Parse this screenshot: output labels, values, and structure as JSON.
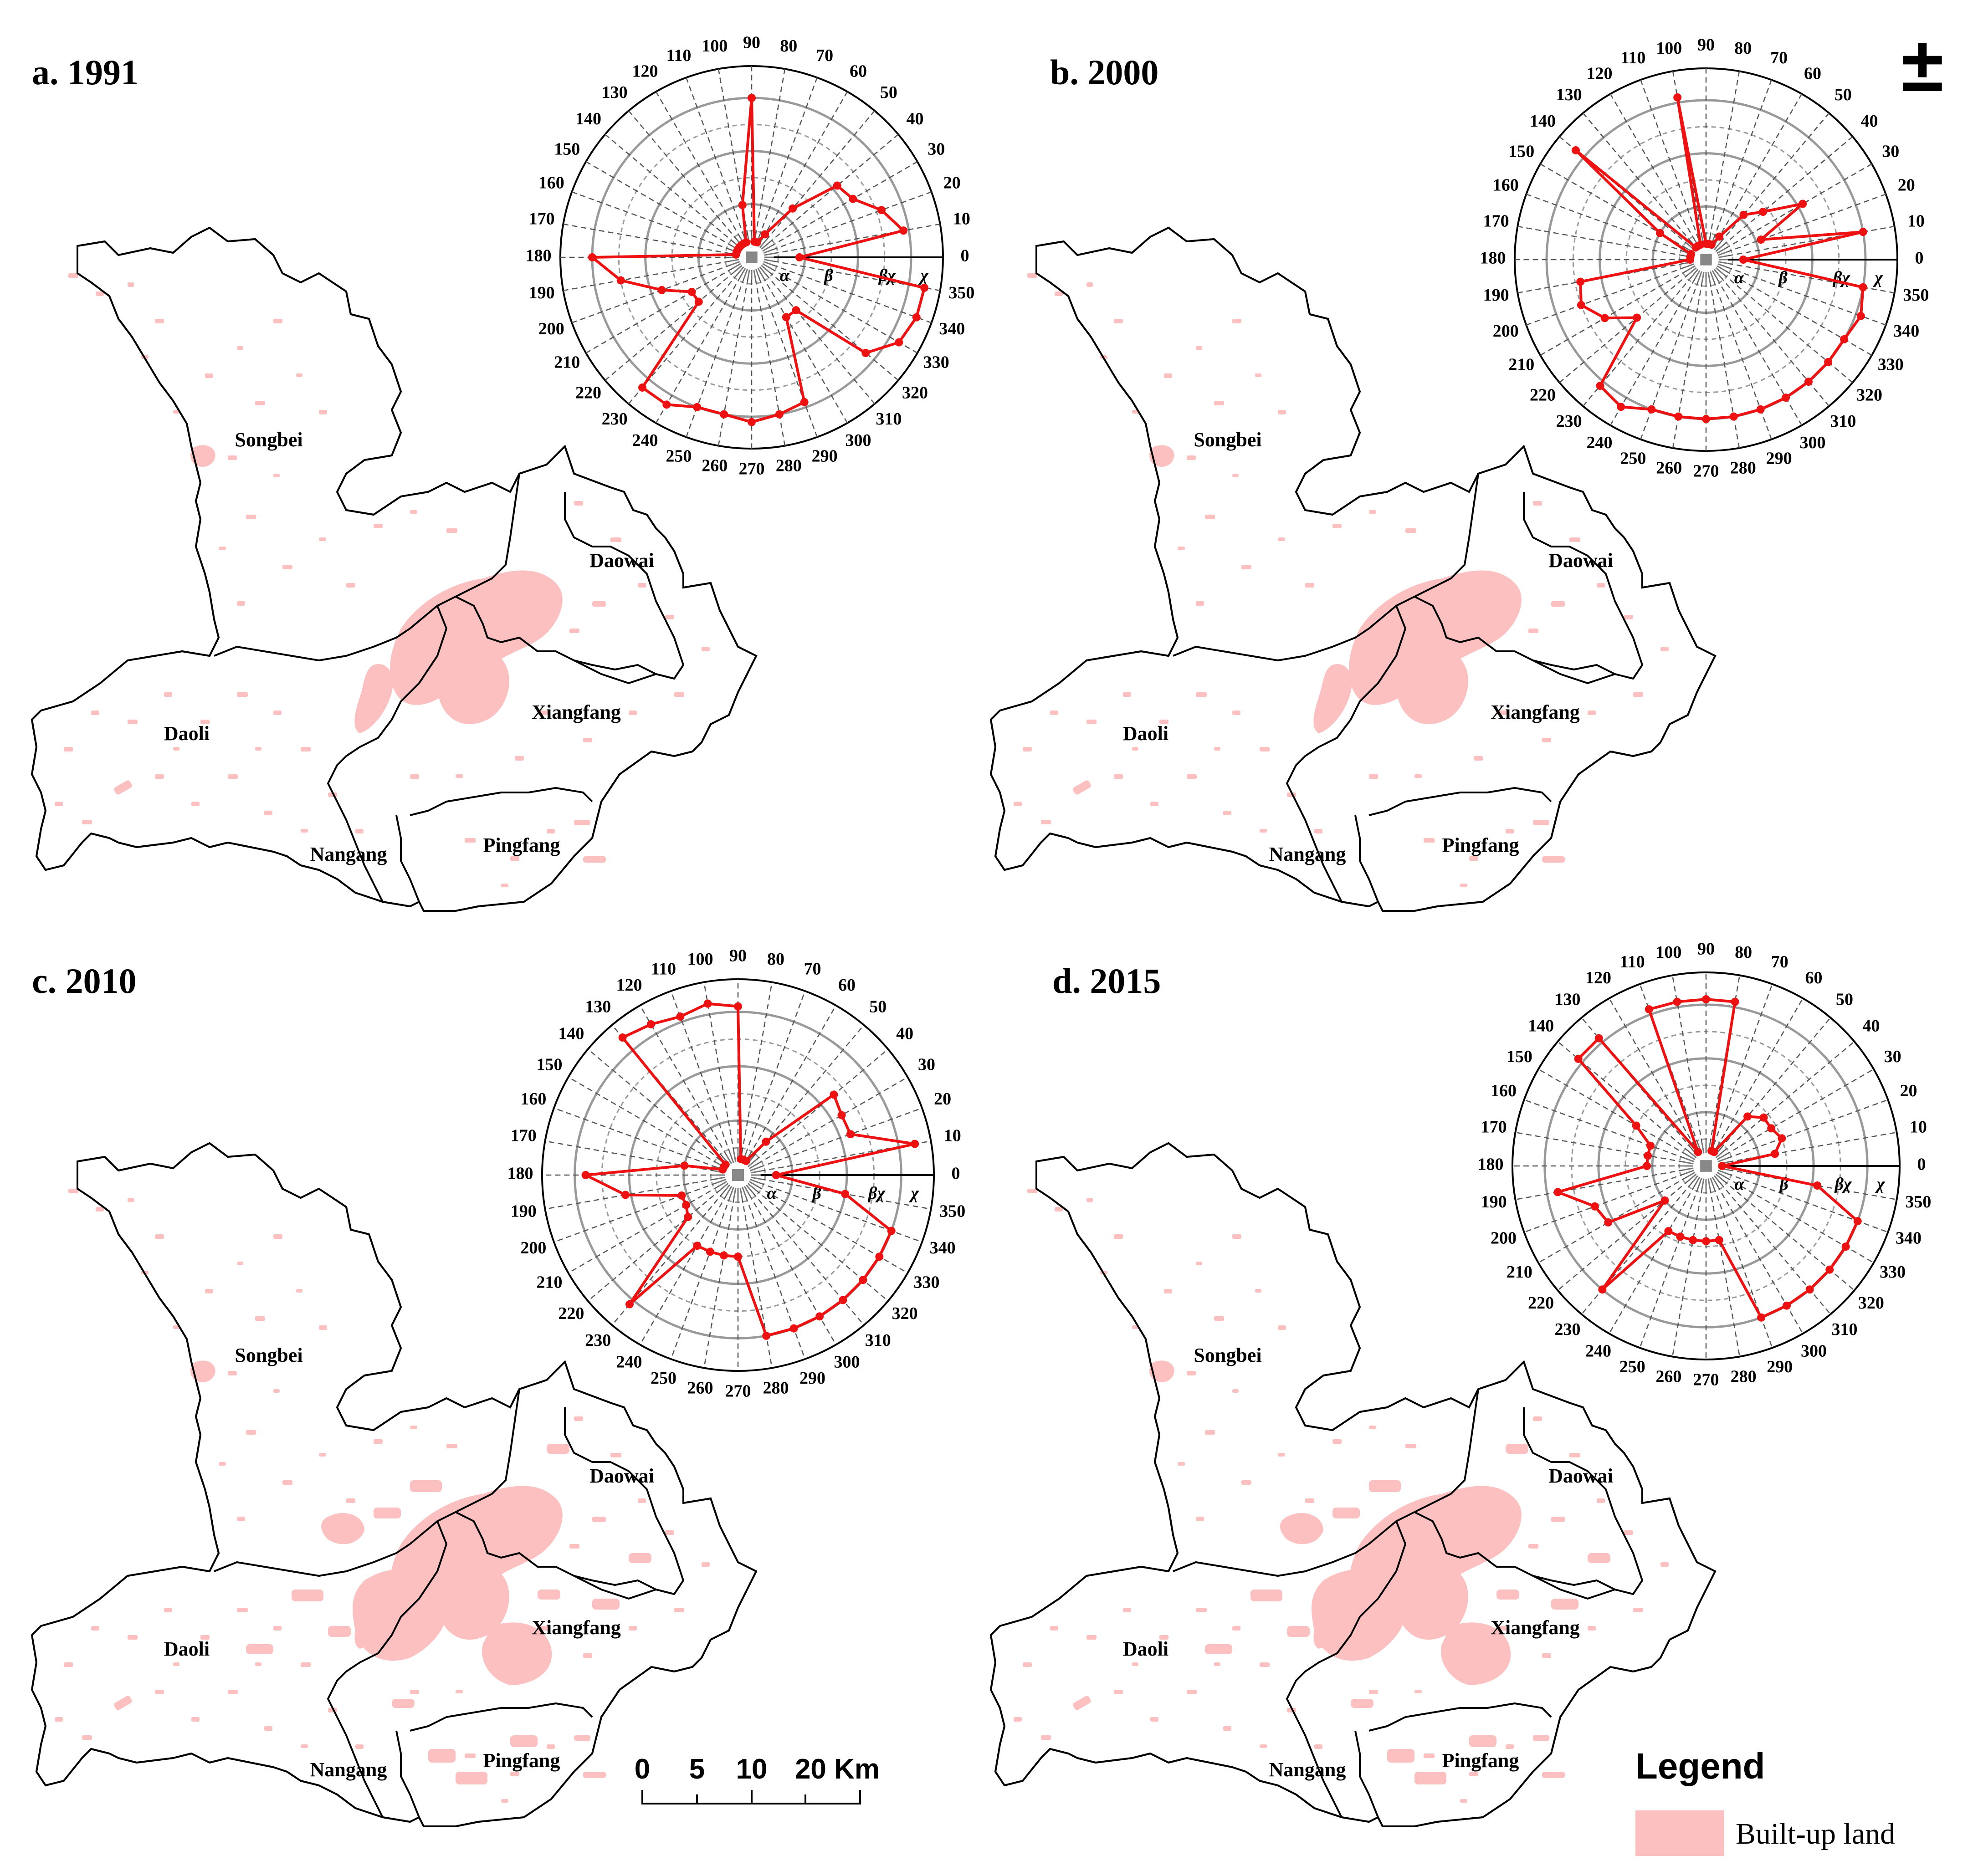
{
  "panels": [
    {
      "title": "a. 1991",
      "chart_data": {
        "type": "radar",
        "axis_angles": [
          0,
          10,
          20,
          30,
          40,
          50,
          60,
          70,
          80,
          90,
          100,
          110,
          120,
          130,
          140,
          150,
          160,
          170,
          180,
          190,
          200,
          210,
          220,
          230,
          240,
          250,
          260,
          270,
          280,
          290,
          300,
          310,
          320,
          330,
          340,
          350
        ],
        "ring_labels": [
          "α",
          "β",
          "βχ",
          "χ"
        ],
        "values": [
          0.9,
          2.9,
          2.6,
          2.2,
          2.1,
          1.2,
          0.5,
          0.3,
          0.3,
          3.0,
          1.0,
          0.3,
          0.3,
          0.3,
          0.3,
          0.3,
          0.3,
          0.3,
          3.0,
          2.5,
          1.8,
          1.3,
          1.3,
          3.2,
          3.2,
          3.0,
          3.0,
          3.1,
          3.0,
          2.9,
          1.3,
          1.3,
          2.8,
          3.2,
          3.3,
          3.3
        ]
      }
    },
    {
      "title": "b. 2000",
      "chart_data": {
        "type": "radar",
        "axis_angles": [
          0,
          10,
          20,
          30,
          40,
          50,
          60,
          70,
          80,
          90,
          100,
          110,
          120,
          130,
          140,
          150,
          160,
          170,
          180,
          190,
          200,
          210,
          220,
          230,
          240,
          250,
          260,
          270,
          280,
          290,
          300,
          310,
          320,
          330,
          340,
          350
        ],
        "ring_labels": [
          "α",
          "β",
          "βχ",
          "χ"
        ],
        "values": [
          0.7,
          3.0,
          1.1,
          2.1,
          1.4,
          1.1,
          0.5,
          0.3,
          0.3,
          0.3,
          3.1,
          0.3,
          0.3,
          0.3,
          3.2,
          1.0,
          0.3,
          0.3,
          0.3,
          2.4,
          2.5,
          2.2,
          1.7,
          3.1,
          3.2,
          3.0,
          3.0,
          3.0,
          3.0,
          3.0,
          3.0,
          3.0,
          3.0,
          3.0,
          3.1,
          3.0
        ]
      }
    },
    {
      "title": "c. 2010",
      "chart_data": {
        "type": "radar",
        "axis_angles": [
          0,
          10,
          20,
          30,
          40,
          50,
          60,
          70,
          80,
          90,
          100,
          110,
          120,
          130,
          140,
          150,
          160,
          170,
          180,
          190,
          200,
          210,
          220,
          230,
          240,
          250,
          260,
          270,
          280,
          290,
          300,
          310,
          320,
          330,
          340,
          350
        ],
        "ring_labels": [
          "α",
          "β",
          "βχ",
          "χ"
        ],
        "values": [
          0.7,
          3.3,
          2.2,
          2.2,
          2.3,
          0.8,
          0.3,
          0.3,
          0.3,
          3.1,
          3.2,
          3.1,
          3.2,
          3.3,
          0.3,
          0.3,
          0.3,
          1.0,
          2.8,
          2.1,
          1.1,
          1.1,
          1.2,
          3.1,
          1.5,
          1.5,
          1.5,
          1.5,
          3.0,
          3.0,
          3.0,
          3.0,
          3.0,
          3.0,
          3.0,
          2.0
        ]
      }
    },
    {
      "title": "d. 2015",
      "chart_data": {
        "type": "radar",
        "axis_angles": [
          0,
          10,
          20,
          30,
          40,
          50,
          60,
          70,
          80,
          90,
          100,
          110,
          120,
          130,
          140,
          150,
          160,
          170,
          180,
          190,
          200,
          210,
          220,
          230,
          240,
          250,
          260,
          270,
          280,
          290,
          300,
          310,
          320,
          330,
          340,
          350
        ],
        "ring_labels": [
          "α",
          "β",
          "βχ",
          "χ"
        ],
        "values": [
          0.3,
          1.3,
          1.5,
          1.4,
          1.4,
          1.2,
          0.3,
          0.3,
          3.1,
          3.1,
          3.1,
          3.1,
          0.3,
          3.1,
          3.1,
          1.5,
          1.1,
          1.1,
          1.1,
          2.8,
          2.2,
          2.1,
          1.0,
          3.0,
          1.4,
          1.4,
          1.4,
          1.4,
          1.4,
          3.0,
          3.0,
          3.0,
          3.0,
          3.0,
          3.0,
          2.1
        ]
      }
    }
  ],
  "districts": [
    "Songbei",
    "Daowai",
    "Daoli",
    "Xiangfang",
    "Nangang",
    "Pingfang"
  ],
  "north_arrow": "±",
  "scale_bar": {
    "labels": [
      "0",
      "5",
      "10",
      "20 Km"
    ]
  },
  "legend": {
    "title": "Legend",
    "items": [
      {
        "label": "Built-up land",
        "color": "#fcc0c0"
      }
    ]
  },
  "colors": {
    "built_up": "#fcc0c0",
    "radar_line": "#ee1111",
    "ring_major": "#999999",
    "ring_minor": "#555555"
  },
  "icons": {
    "north_arrow": "north-arrow-icon",
    "scale_bar": "scale-bar-icon"
  }
}
